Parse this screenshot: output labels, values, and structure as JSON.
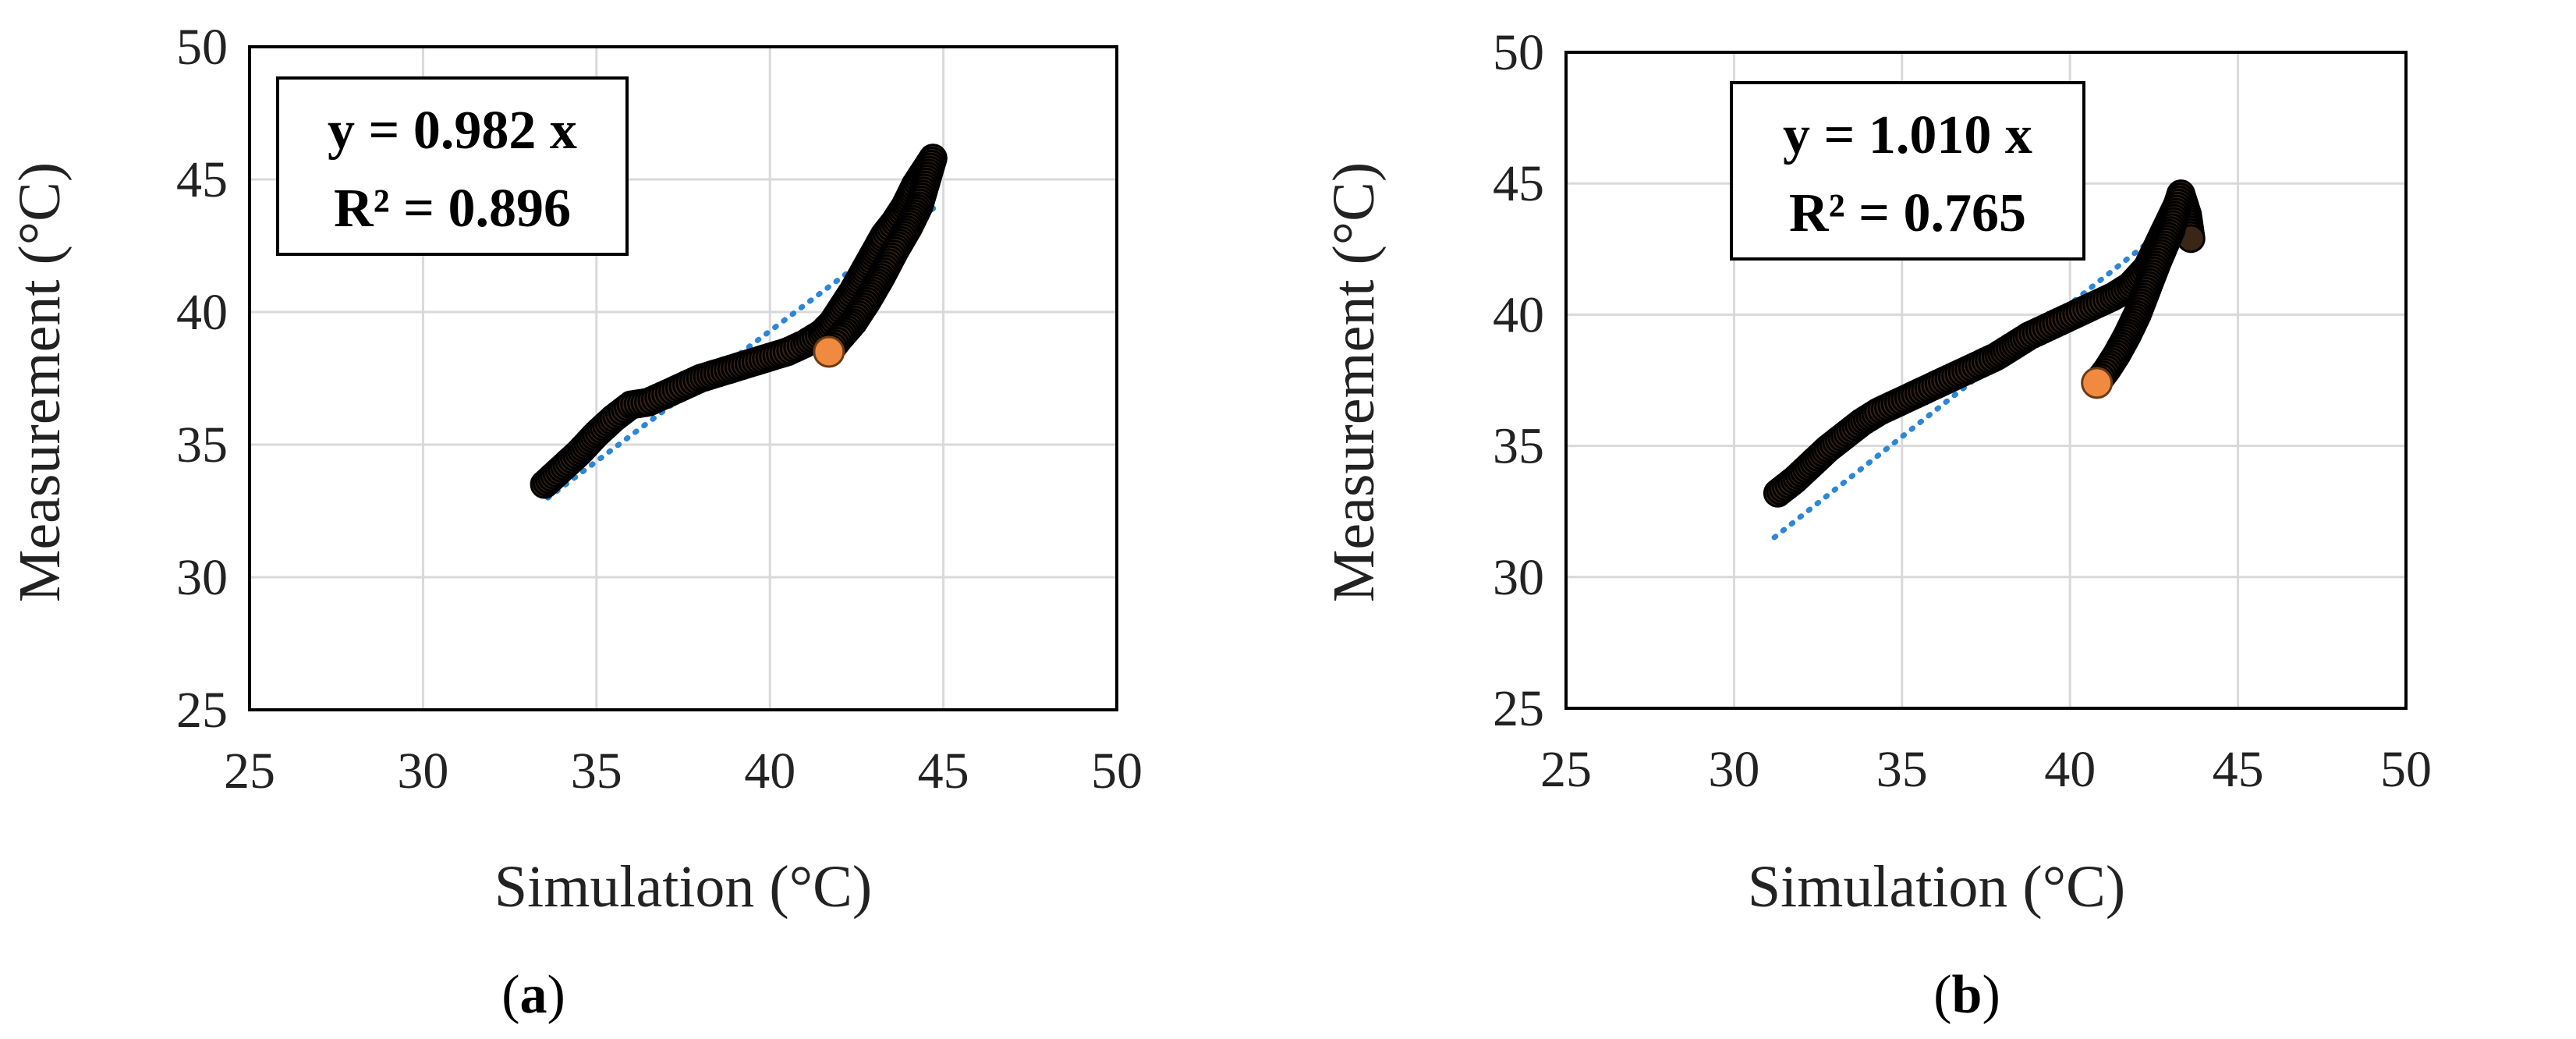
{
  "colors": {
    "marker_fill": "#3a2616",
    "marker_edge": "#000000",
    "marker_highlight": "#f08a40",
    "trend": "#2e86d6",
    "grid": "#d9d9d9"
  },
  "chart_data": [
    {
      "type": "scatter",
      "panel_label_open": "(",
      "panel_label": "a",
      "panel_label_close": ")",
      "xlabel": "Simulation (°C)",
      "ylabel": "Measurement (°C)",
      "xlim": [
        25,
        50
      ],
      "ylim": [
        25,
        50
      ],
      "xticks": [
        25,
        30,
        35,
        40,
        45,
        50
      ],
      "yticks": [
        25,
        30,
        35,
        40,
        45,
        50
      ],
      "grid": true,
      "equation": "y = 0.982 x",
      "r_squared": "R² = 0.896",
      "trendline": {
        "slope": 0.982,
        "x_range": [
          33.6,
          44.8
        ]
      },
      "measured_path": [
        [
          33.5,
          33.5
        ],
        [
          34.0,
          34.1
        ],
        [
          34.5,
          34.7
        ],
        [
          35.0,
          35.4
        ],
        [
          35.5,
          36.0
        ],
        [
          36.0,
          36.5
        ],
        [
          36.5,
          36.6
        ],
        [
          37.0,
          36.9
        ],
        [
          37.5,
          37.2
        ],
        [
          38.0,
          37.5
        ],
        [
          38.5,
          37.7
        ],
        [
          39.0,
          37.9
        ],
        [
          39.5,
          38.1
        ],
        [
          40.0,
          38.3
        ],
        [
          40.5,
          38.5
        ],
        [
          41.0,
          38.8
        ],
        [
          41.5,
          39.2
        ],
        [
          41.8,
          39.6
        ],
        [
          42.1,
          40.2
        ],
        [
          42.4,
          40.8
        ],
        [
          42.7,
          41.5
        ],
        [
          43.0,
          42.2
        ],
        [
          43.3,
          42.9
        ],
        [
          43.6,
          43.4
        ],
        [
          43.9,
          44.0
        ],
        [
          44.2,
          44.8
        ],
        [
          44.5,
          45.4
        ],
        [
          44.7,
          45.8
        ]
      ],
      "return_path": [
        [
          44.7,
          45.8
        ],
        [
          44.5,
          44.9
        ],
        [
          44.3,
          44.0
        ],
        [
          44.0,
          43.2
        ],
        [
          43.6,
          42.3
        ],
        [
          43.2,
          41.3
        ],
        [
          42.8,
          40.4
        ],
        [
          42.4,
          39.6
        ],
        [
          42.0,
          39.0
        ],
        [
          41.7,
          38.5
        ]
      ],
      "highlight_point": [
        41.7,
        38.5
      ]
    },
    {
      "type": "scatter",
      "panel_label_open": "(",
      "panel_label": "b",
      "panel_label_close": ")",
      "xlabel": "Simulation (°C)",
      "ylabel": "Measurement (°C)",
      "xlim": [
        25,
        50
      ],
      "ylim": [
        25,
        50
      ],
      "xticks": [
        25,
        30,
        35,
        40,
        45,
        50
      ],
      "yticks": [
        25,
        30,
        35,
        40,
        45,
        50
      ],
      "grid": true,
      "equation": "y = 1.010 x",
      "r_squared": "R² = 0.765",
      "trendline": {
        "slope": 1.01,
        "x_range": [
          31.2,
          43.5
        ]
      },
      "measured_path": [
        [
          31.3,
          33.2
        ],
        [
          31.8,
          33.7
        ],
        [
          32.3,
          34.3
        ],
        [
          32.8,
          34.9
        ],
        [
          33.3,
          35.4
        ],
        [
          33.8,
          35.9
        ],
        [
          34.3,
          36.3
        ],
        [
          34.8,
          36.6
        ],
        [
          35.3,
          36.9
        ],
        [
          35.8,
          37.2
        ],
        [
          36.3,
          37.5
        ],
        [
          36.8,
          37.8
        ],
        [
          37.3,
          38.1
        ],
        [
          37.8,
          38.4
        ],
        [
          38.3,
          38.8
        ],
        [
          38.8,
          39.2
        ],
        [
          39.3,
          39.5
        ],
        [
          39.8,
          39.8
        ],
        [
          40.3,
          40.1
        ],
        [
          40.8,
          40.4
        ],
        [
          41.3,
          40.7
        ],
        [
          41.8,
          41.1
        ],
        [
          42.3,
          41.8
        ],
        [
          42.6,
          42.6
        ],
        [
          42.9,
          43.4
        ],
        [
          43.2,
          44.2
        ],
        [
          43.3,
          44.6
        ],
        [
          43.5,
          43.8
        ],
        [
          43.6,
          42.9
        ]
      ],
      "return_path": [
        [
          43.3,
          44.6
        ],
        [
          43.0,
          43.2
        ],
        [
          42.6,
          42.0
        ],
        [
          42.3,
          41.0
        ],
        [
          42.0,
          40.0
        ],
        [
          41.7,
          39.2
        ],
        [
          41.4,
          38.5
        ],
        [
          41.1,
          37.9
        ],
        [
          40.8,
          37.4
        ]
      ],
      "highlight_point": [
        40.8,
        37.4
      ]
    }
  ]
}
